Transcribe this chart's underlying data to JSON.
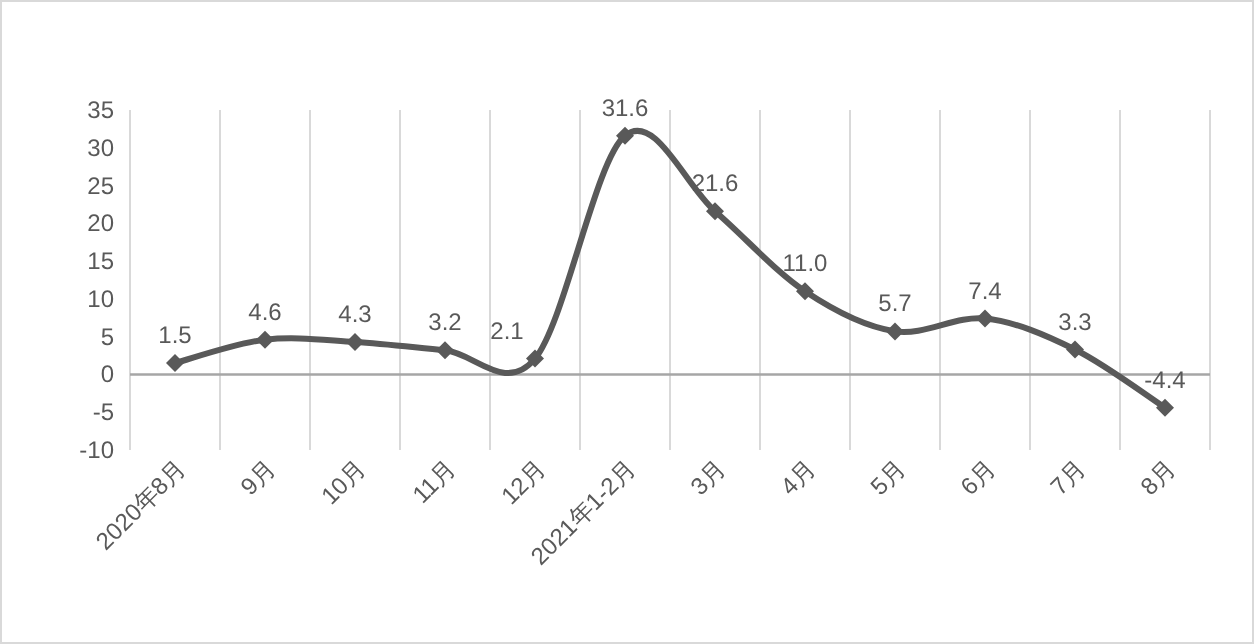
{
  "chart_data": {
    "type": "line",
    "categories": [
      "2020年8月",
      "9月",
      "10月",
      "11月",
      "12月",
      "2021年1-2月",
      "3月",
      "4月",
      "5月",
      "6月",
      "7月",
      "8月"
    ],
    "series": [
      {
        "color": "#595959",
        "values": [
          1.5,
          4.6,
          4.3,
          3.2,
          2.1,
          31.6,
          21.6,
          11.0,
          5.7,
          7.4,
          3.3,
          -4.4
        ],
        "value_labels": [
          "1.5",
          "4.6",
          "4.3",
          "3.2",
          "2.1",
          "31.6",
          "21.6",
          "11.0",
          "5.7",
          "7.4",
          "3.3",
          "-4.4"
        ]
      }
    ],
    "ylim": [
      -10,
      35
    ],
    "yticks": [
      -10,
      -5,
      0,
      5,
      10,
      15,
      20,
      25,
      30,
      35
    ],
    "grid": "x",
    "marker": "diamond",
    "line_style": "solid"
  }
}
